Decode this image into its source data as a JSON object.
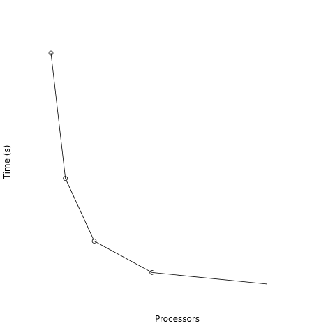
{
  "chart_data": {
    "type": "line",
    "title": "",
    "xlabel": "Processors",
    "ylabel": "Time (s)",
    "x": [
      1,
      2,
      4,
      8,
      16
    ],
    "series": [
      {
        "values": [
          80,
          40,
          20,
          10,
          6.3
        ],
        "markers": [
          true,
          true,
          true,
          true,
          false
        ]
      }
    ],
    "xlim": [
      1,
      16
    ],
    "ylim": [
      6.3,
      80
    ],
    "axes_visible": false,
    "grid": false,
    "legend": "none",
    "colors": {
      "line": "#000000",
      "background": "#ffffff"
    }
  }
}
